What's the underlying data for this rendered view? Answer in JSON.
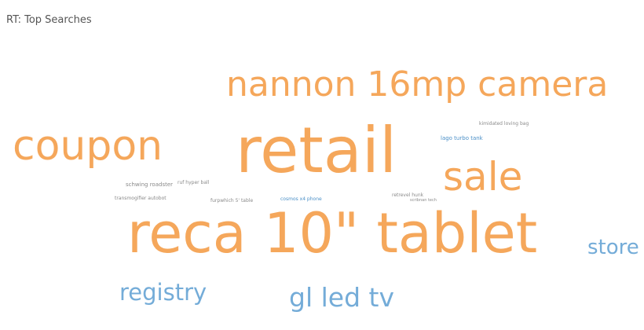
{
  "header": {
    "title": "RT: Top Searches"
  },
  "wordcloud": {
    "words": {
      "camera": {
        "text": "nannon 16mp camera",
        "color": "#f5a75b"
      },
      "coupon": {
        "text": "coupon",
        "color": "#f5a75b"
      },
      "retail": {
        "text": "retail",
        "color": "#f5a75b"
      },
      "sale": {
        "text": "sale",
        "color": "#f5a75b"
      },
      "tablet": {
        "text": "reca 10\" tablet",
        "color": "#f5a75b"
      },
      "store": {
        "text": "store",
        "color": "#74acd8"
      },
      "registry": {
        "text": "registry",
        "color": "#74acd8"
      },
      "gltv": {
        "text": "gl led tv",
        "color": "#74acd8"
      },
      "schwing": {
        "text": "schwing roadster",
        "color": "#8a8a8a"
      },
      "ruf": {
        "text": "ruf hyper ball",
        "color": "#8a8a8a"
      },
      "transmogrifier": {
        "text": "transmogifier autobot",
        "color": "#8a8a8a"
      },
      "furpwhich": {
        "text": "furpwhich 5' table",
        "color": "#8a8a8a"
      },
      "cosmos": {
        "text": "cosmos x4 phone",
        "color": "#4a8fc7"
      },
      "retrevel": {
        "text": "retrevel hunk",
        "color": "#8a8a8a"
      },
      "scrabnan": {
        "text": "scribnan tech",
        "color": "#8a8a8a"
      },
      "lago": {
        "text": "lago turbo tank",
        "color": "#4a8fc7"
      },
      "kimidated": {
        "text": "kimidated loving bag",
        "color": "#8a8a8a"
      }
    }
  }
}
